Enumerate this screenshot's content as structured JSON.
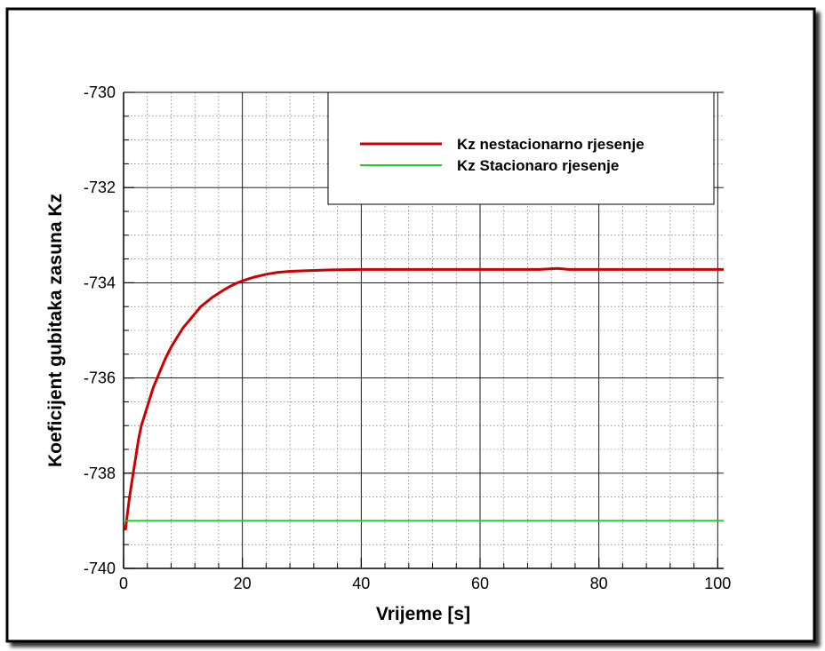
{
  "chart_data": {
    "type": "line",
    "title": "",
    "xlabel": "Vrijeme [s]",
    "ylabel": "Koeficijent gubitaka zasuna Kz",
    "xlim": [
      0,
      101
    ],
    "ylim": [
      -740,
      -730
    ],
    "x_ticks": [
      0,
      20,
      40,
      60,
      80,
      100
    ],
    "y_ticks": [
      -740,
      -738,
      -736,
      -734,
      -732,
      -730
    ],
    "x_tick_labels": [
      "0",
      "20",
      "40",
      "60",
      "80",
      "100"
    ],
    "y_tick_labels": [
      "-740",
      "-738",
      "-736",
      "-734",
      "-732",
      "-730"
    ],
    "grid": true,
    "minor_grid": true,
    "legend_position": "top-right",
    "series": [
      {
        "name": "Kz nestacionarno rjesenje",
        "color": "#cc0000",
        "x": [
          0.3,
          0.6,
          1,
          1.5,
          2,
          2.5,
          3,
          3.5,
          4,
          5,
          6,
          7,
          8,
          9,
          10,
          11,
          12,
          13,
          14,
          15,
          16,
          17,
          18,
          19,
          20,
          21,
          22,
          23,
          24,
          25,
          26,
          27,
          28,
          30,
          32,
          35,
          40,
          45,
          50,
          55,
          60,
          65,
          70,
          73,
          75,
          80,
          85,
          90,
          95,
          100,
          101
        ],
        "y": [
          -739.2,
          -738.9,
          -738.5,
          -738.1,
          -737.7,
          -737.3,
          -737.0,
          -736.8,
          -736.6,
          -736.2,
          -735.9,
          -735.6,
          -735.35,
          -735.15,
          -734.95,
          -734.8,
          -734.65,
          -734.5,
          -734.4,
          -734.3,
          -734.22,
          -734.14,
          -734.07,
          -734.01,
          -733.96,
          -733.92,
          -733.88,
          -733.85,
          -733.82,
          -733.8,
          -733.78,
          -733.77,
          -733.76,
          -733.75,
          -733.74,
          -733.73,
          -733.72,
          -733.72,
          -733.72,
          -733.72,
          -733.72,
          -733.72,
          -733.72,
          -733.7,
          -733.72,
          -733.72,
          -733.72,
          -733.72,
          -733.72,
          -733.72,
          -733.72
        ]
      },
      {
        "name": "Kz Stacionaro rjesenje",
        "color": "#22cc22",
        "x": [
          0,
          101
        ],
        "y": [
          -739.0,
          -739.0
        ]
      }
    ]
  }
}
